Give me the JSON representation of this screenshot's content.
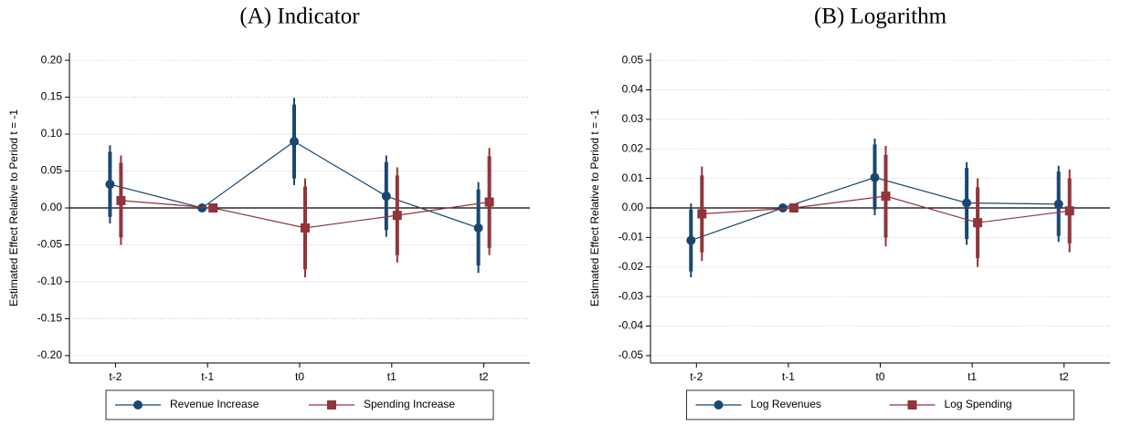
{
  "chart_data": [
    {
      "type": "line",
      "title": "(A) Indicator",
      "y_label": "Estimated Effect Relative to Period t = -1",
      "categories": [
        "t-2",
        "t-1",
        "t0",
        "t1",
        "t2"
      ],
      "ylim": [
        -0.21,
        0.21
      ],
      "yticks": [
        {
          "value": -0.2,
          "label": "-0.20"
        },
        -0.15,
        {
          "value": -0.1,
          "label": "-0.10"
        },
        -0.05,
        {
          "value": 0,
          "label": "0.00"
        },
        0.05,
        {
          "value": 0.1,
          "label": "0.10"
        },
        0.15,
        {
          "value": 0.2,
          "label": "0.20"
        }
      ],
      "grid": true,
      "series": [
        {
          "name": "Revenue Increase",
          "color": "#1a476f",
          "marker": "circle",
          "values": [
            0.032,
            0,
            0.09,
            0.016,
            -0.027
          ],
          "ci_low": [
            -0.021,
            null,
            0.031,
            -0.039,
            -0.088
          ],
          "ci_high": [
            0.085,
            null,
            0.149,
            0.071,
            0.035
          ],
          "ci90_low": [
            -0.012,
            null,
            0.04,
            -0.03,
            -0.078
          ],
          "ci90_high": [
            0.076,
            null,
            0.14,
            0.062,
            0.025
          ]
        },
        {
          "name": "Spending Increase",
          "color": "#90353b",
          "marker": "square",
          "values": [
            0.01,
            0,
            -0.027,
            -0.01,
            0.008
          ],
          "ci_low": [
            -0.05,
            null,
            -0.094,
            -0.074,
            -0.064
          ],
          "ci_high": [
            0.071,
            null,
            0.04,
            0.055,
            0.081
          ],
          "ci90_low": [
            -0.04,
            null,
            -0.083,
            -0.064,
            -0.054
          ],
          "ci90_high": [
            0.061,
            null,
            0.029,
            0.044,
            0.07
          ]
        }
      ]
    },
    {
      "type": "line",
      "title": "(B) Logarithm",
      "y_label": "Estimated Effect Relative to Period t = -1",
      "categories": [
        "t-2",
        "t-1",
        "t0",
        "t1",
        "t2"
      ],
      "ylim": [
        -0.0525,
        0.0525
      ],
      "yticks": [
        -0.05,
        -0.04,
        -0.03,
        -0.02,
        -0.01,
        {
          "value": 0,
          "label": "0.00"
        },
        0.01,
        0.02,
        0.03,
        0.04,
        0.05
      ],
      "grid": true,
      "series": [
        {
          "name": "Log Revenues",
          "color": "#1a476f",
          "marker": "circle",
          "values": [
            -0.011,
            0,
            0.0103,
            0.0017,
            0.0013
          ],
          "ci_low": [
            -0.0235,
            null,
            -0.0025,
            -0.0125,
            -0.0115
          ],
          "ci_high": [
            0.0015,
            null,
            0.0235,
            0.0155,
            0.0143
          ],
          "ci90_low": [
            -0.0215,
            null,
            -0.0005,
            -0.0105,
            -0.0095
          ],
          "ci90_high": [
            -0.0005,
            null,
            0.0215,
            0.0135,
            0.0123
          ]
        },
        {
          "name": "Log Spending",
          "color": "#90353b",
          "marker": "square",
          "values": [
            -0.002,
            0,
            0.004,
            -0.005,
            -0.001
          ],
          "ci_low": [
            -0.018,
            null,
            -0.013,
            -0.02,
            -0.015
          ],
          "ci_high": [
            0.014,
            null,
            0.021,
            0.01,
            0.013
          ],
          "ci90_low": [
            -0.015,
            null,
            -0.01,
            -0.017,
            -0.012
          ],
          "ci90_high": [
            0.011,
            null,
            0.018,
            0.007,
            0.01
          ]
        }
      ]
    }
  ]
}
